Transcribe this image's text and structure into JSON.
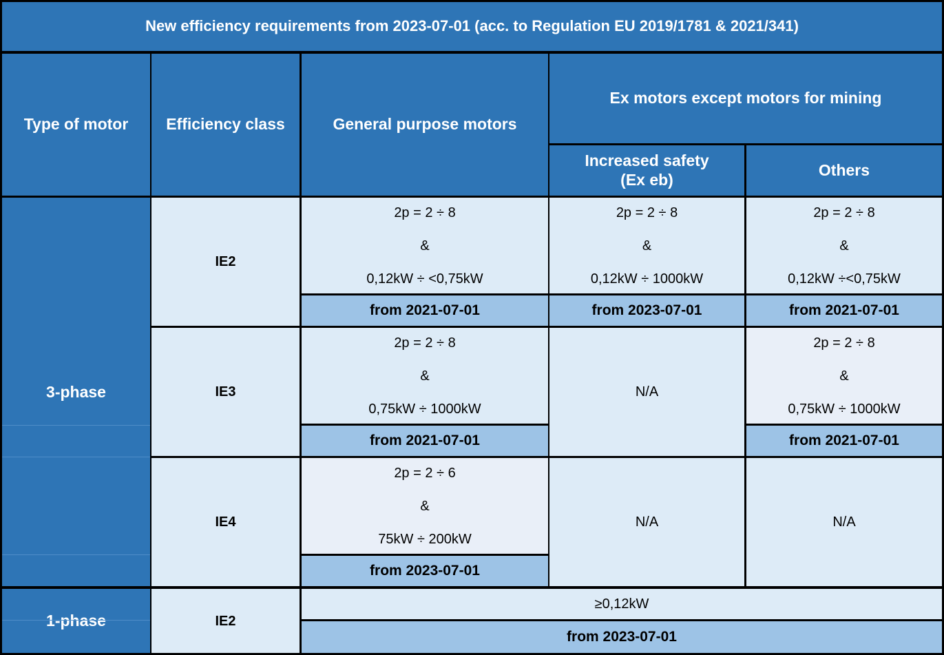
{
  "table": {
    "title": "New efficiency requirements from 2023-07-01 (acc. to Regulation EU 2019/1781 & 2021/341)",
    "headers": {
      "type_of_motor": "Type of motor",
      "efficiency_class": "Efficiency class",
      "general_purpose": "General purpose motors",
      "ex_motors": "Ex motors except motors for mining",
      "increased_safety": [
        "Increased safety",
        "(Ex eb)"
      ],
      "others": "Others"
    },
    "three_phase": {
      "label": "3-phase",
      "rows": [
        {
          "class": "IE2",
          "general": {
            "lines": [
              "2p = 2 ÷ 8",
              "&",
              "0,12kW ÷ <0,75kW"
            ],
            "date": "from 2021-07-01"
          },
          "ex_eb": {
            "lines": [
              "2p = 2 ÷ 8",
              "&",
              "0,12kW ÷ 1000kW"
            ],
            "date": "from 2023-07-01"
          },
          "others": {
            "lines": [
              "2p = 2 ÷ 8",
              "&",
              "0,12kW ÷<0,75kW"
            ],
            "date": "from 2021-07-01"
          }
        },
        {
          "class": "IE3",
          "general": {
            "lines": [
              "2p = 2 ÷ 8",
              "&",
              "0,75kW ÷ 1000kW"
            ],
            "date": "from 2021-07-01"
          },
          "ex_eb": {
            "na": "N/A"
          },
          "others": {
            "lines": [
              "2p = 2 ÷ 8",
              "&",
              "0,75kW ÷ 1000kW"
            ],
            "date": "from 2021-07-01"
          }
        },
        {
          "class": "IE4",
          "general": {
            "lines": [
              "2p = 2 ÷ 6",
              "&",
              "75kW ÷ 200kW"
            ],
            "date": "from 2023-07-01"
          },
          "ex_eb": {
            "na": "N/A"
          },
          "others": {
            "na": "N/A"
          }
        }
      ]
    },
    "one_phase": {
      "label": "1-phase",
      "class": "IE2",
      "power": "≥0,12kW",
      "date": "from 2023-07-01"
    }
  }
}
